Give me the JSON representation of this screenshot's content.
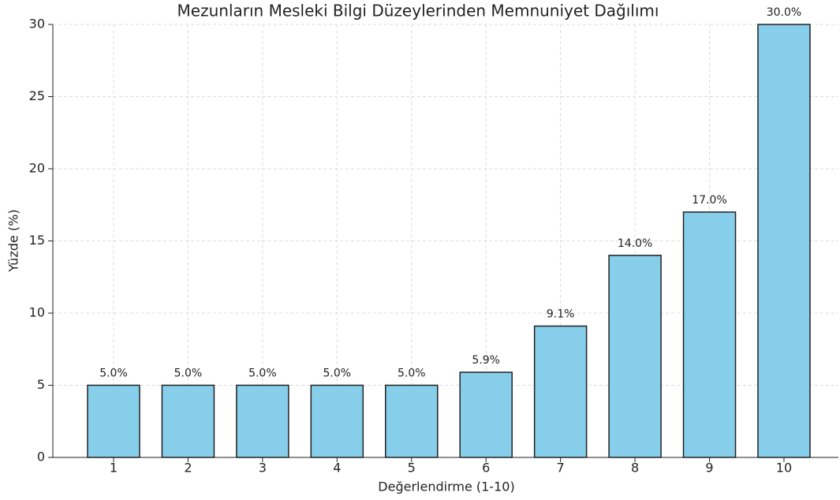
{
  "chart_data": {
    "type": "bar",
    "title": "Mezunların Mesleki Bilgi Düzeylerinden Memnuniyet Dağılımı",
    "x_label": "Değerlendirme (1-10)",
    "y_label": "Yüzde (%)",
    "categories": [
      "1",
      "2",
      "3",
      "4",
      "5",
      "6",
      "7",
      "8",
      "9",
      "10"
    ],
    "values": [
      5,
      5,
      5,
      5,
      5,
      5.9,
      9.1,
      14,
      17,
      30
    ],
    "value_labels": [
      "5.0%",
      "5.0%",
      "5.0%",
      "5.0%",
      "5.0%",
      "5.9%",
      "9.1%",
      "14.0%",
      "17.0%",
      "30.0%"
    ],
    "color": "#87ceeb",
    "edge_color": "#222222",
    "ylim": [
      0,
      30
    ],
    "yticks": [
      0,
      5,
      10,
      15,
      20,
      25,
      30
    ],
    "grid": true
  }
}
